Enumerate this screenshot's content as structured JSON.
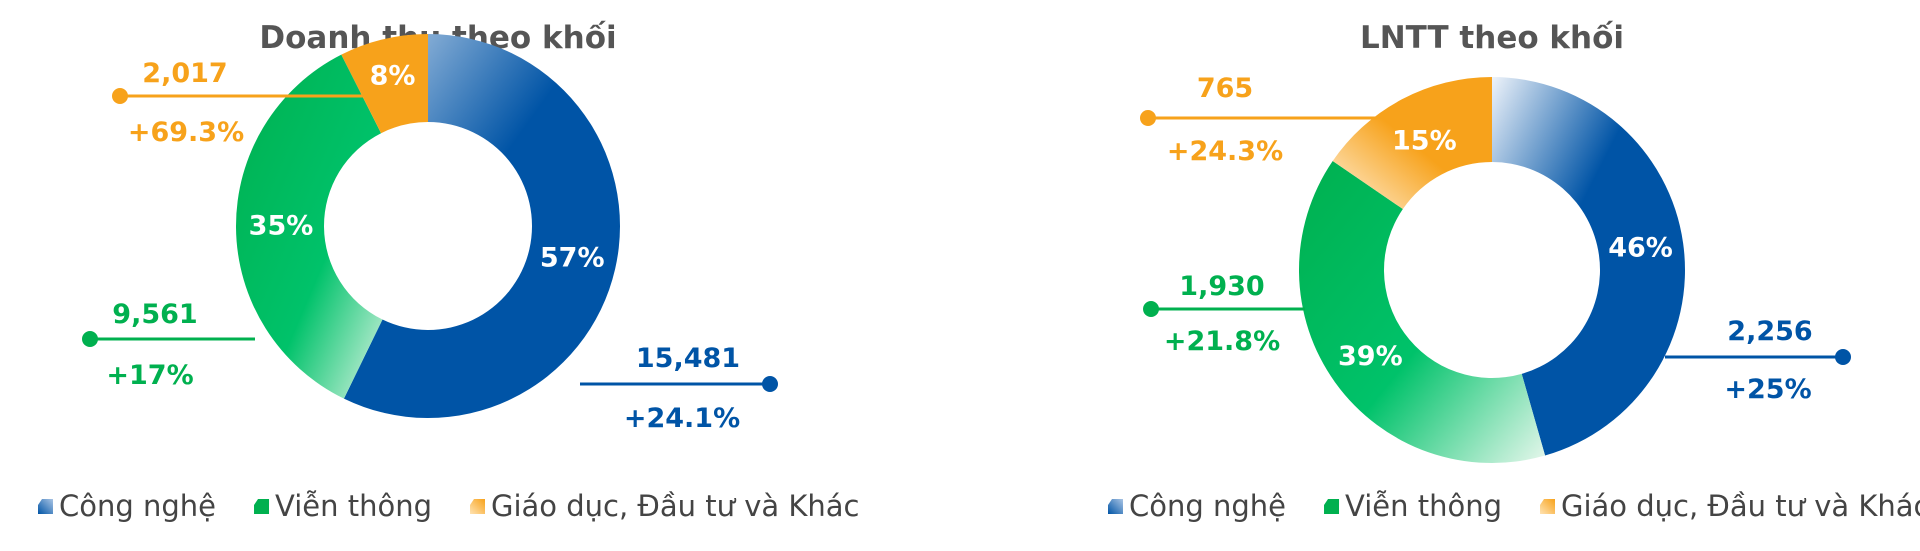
{
  "colors": {
    "cong_nghe": "#0054a6",
    "vien_thong": "#00b04f",
    "giao_duc": "#f7a21b",
    "title": "#555555"
  },
  "chart_data": [
    {
      "type": "pie",
      "title": "Doanh thu theo khối",
      "categories": [
        "Công nghệ",
        "Viễn thông",
        "Giáo dục, Đầu tư và Khác"
      ],
      "values": [
        15481,
        9561,
        2017
      ],
      "percent_labels": [
        "57%",
        "35%",
        "8%"
      ],
      "value_labels": [
        "15,481",
        "9,561",
        "2,017"
      ],
      "growth_labels": [
        "+24.1%",
        "+17%",
        "+69.3%"
      ],
      "legend": [
        "Công nghệ",
        "Viễn thông",
        "Giáo dục, Đầu tư và Khác"
      ],
      "legend_position": "bottom",
      "donut": true
    },
    {
      "type": "pie",
      "title": "LNTT theo khối",
      "categories": [
        "Công nghệ",
        "Viễn thông",
        "Giáo dục, Đầu tư và Khác"
      ],
      "values": [
        2256,
        1930,
        765
      ],
      "percent_labels": [
        "46%",
        "39%",
        "15%"
      ],
      "value_labels": [
        "2,256",
        "1,930",
        "765"
      ],
      "growth_labels": [
        "+25%",
        "+21.8%",
        "+24.3%"
      ],
      "legend": [
        "Công nghệ",
        "Viễn thông",
        "Giáo dục, Đầu tư và Khác"
      ],
      "legend_position": "bottom",
      "donut": true
    }
  ]
}
